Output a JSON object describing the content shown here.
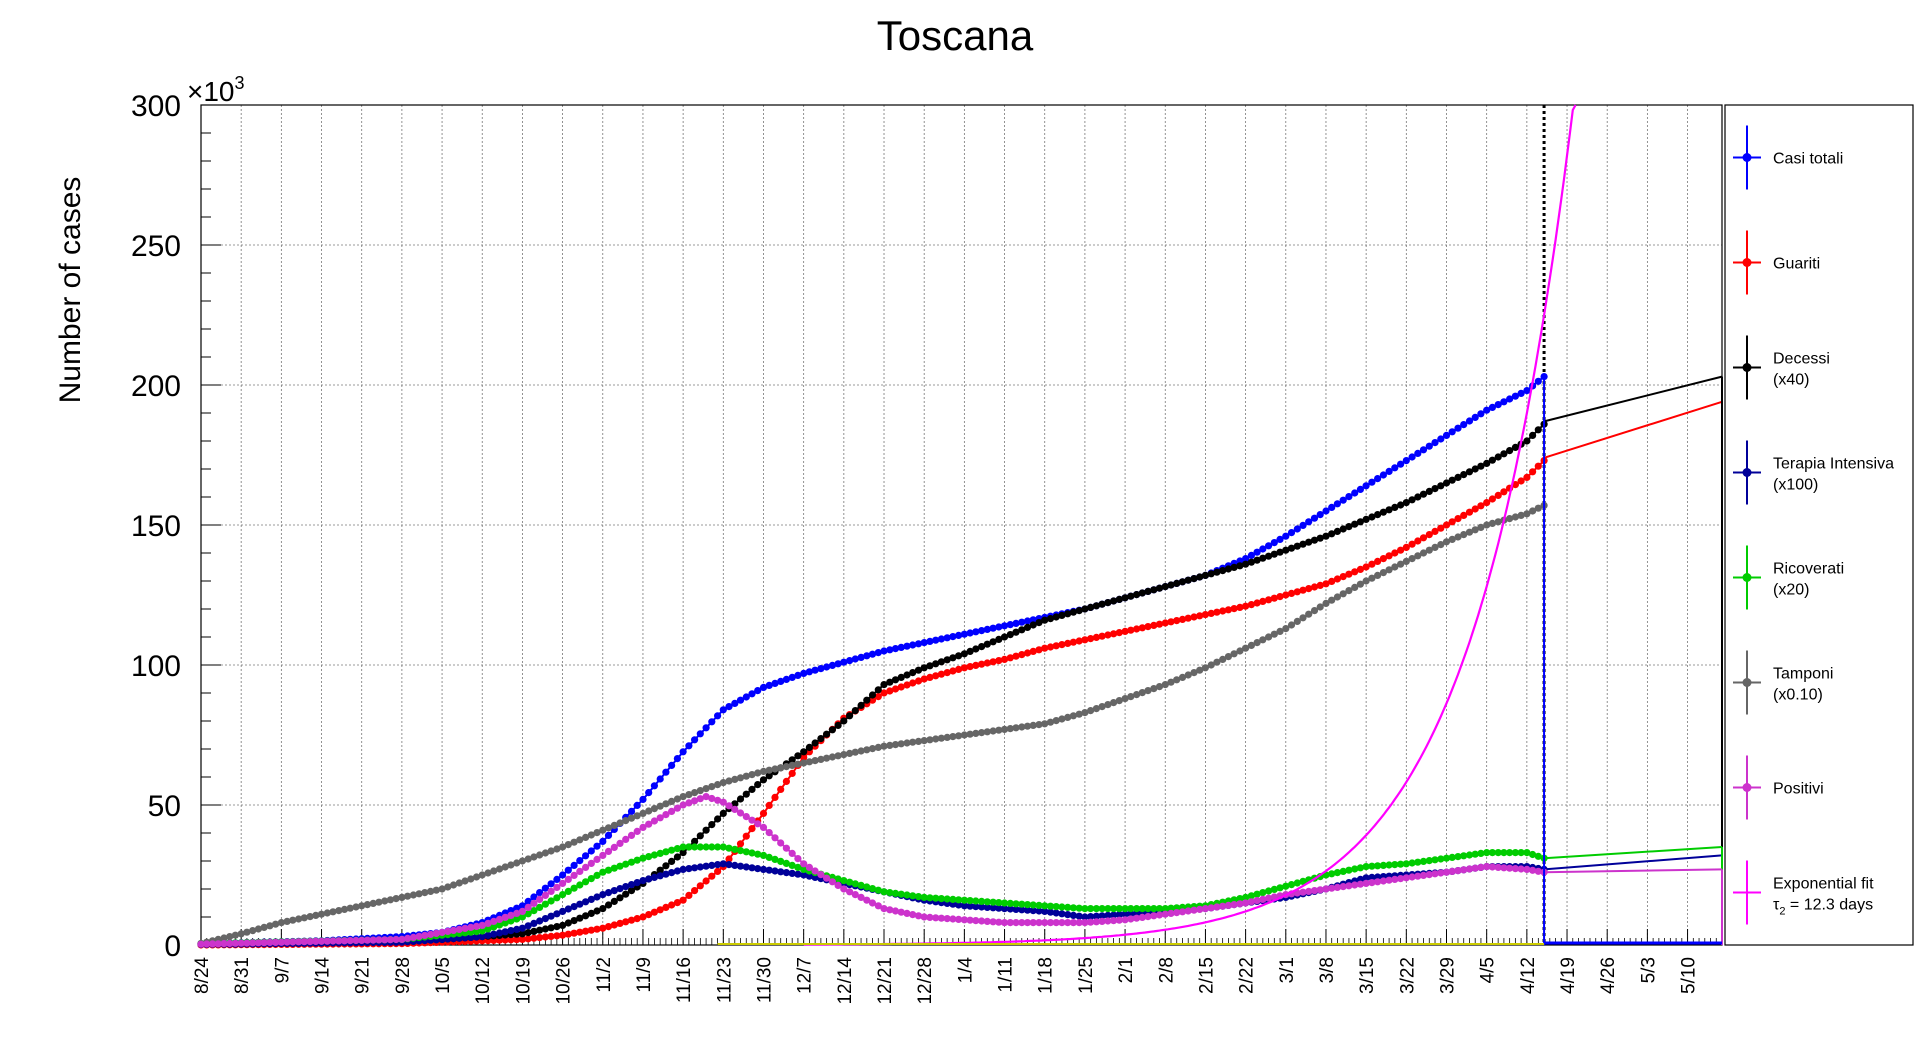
{
  "chart_data": {
    "type": "line",
    "title": "Toscana",
    "ylabel": "Number of cases",
    "xlabel": "",
    "y_multiplier": "×10",
    "y_multiplier_exp": "3",
    "ylim": [
      0,
      300
    ],
    "y_ticks": [
      0,
      50,
      100,
      150,
      200,
      250,
      300
    ],
    "x_range": [
      "2020-08-24",
      "2021-05-16"
    ],
    "x_ticks": [
      "8/24",
      "8/31",
      "9/7",
      "9/14",
      "9/21",
      "9/28",
      "10/5",
      "10/12",
      "10/19",
      "10/26",
      "11/2",
      "11/9",
      "11/16",
      "11/23",
      "11/30",
      "12/7",
      "12/14",
      "12/21",
      "12/28",
      "1/4",
      "1/11",
      "1/18",
      "1/25",
      "2/1",
      "2/8",
      "2/15",
      "2/22",
      "3/1",
      "3/8",
      "3/15",
      "3/22",
      "3/29",
      "4/5",
      "4/12",
      "4/19",
      "4/26",
      "5/3",
      "5/10"
    ],
    "grid": true,
    "legend_position": "right",
    "vertical_marker_date": "2021-04-15",
    "series": [
      {
        "name": "Casi totali",
        "color": "#0000ff",
        "marker": "circle",
        "points": [
          [
            "2020-08-24",
            0.5
          ],
          [
            "2020-09-14",
            1.5
          ],
          [
            "2020-09-28",
            3
          ],
          [
            "2020-10-05",
            4.5
          ],
          [
            "2020-10-12",
            8
          ],
          [
            "2020-10-19",
            14
          ],
          [
            "2020-10-26",
            25
          ],
          [
            "2020-11-02",
            37
          ],
          [
            "2020-11-09",
            52
          ],
          [
            "2020-11-16",
            69
          ],
          [
            "2020-11-23",
            84
          ],
          [
            "2020-11-30",
            92
          ],
          [
            "2020-12-07",
            97
          ],
          [
            "2020-12-14",
            101
          ],
          [
            "2020-12-21",
            105
          ],
          [
            "2020-12-28",
            108
          ],
          [
            "2021-01-04",
            111
          ],
          [
            "2021-01-11",
            114
          ],
          [
            "2021-01-18",
            117
          ],
          [
            "2021-01-25",
            120
          ],
          [
            "2021-02-01",
            124
          ],
          [
            "2021-02-08",
            128
          ],
          [
            "2021-02-15",
            132
          ],
          [
            "2021-02-22",
            138
          ],
          [
            "2021-03-01",
            146
          ],
          [
            "2021-03-08",
            155
          ],
          [
            "2021-03-15",
            164
          ],
          [
            "2021-03-22",
            173
          ],
          [
            "2021-03-29",
            182
          ],
          [
            "2021-04-05",
            191
          ],
          [
            "2021-04-12",
            198
          ],
          [
            "2021-04-15",
            203
          ]
        ]
      },
      {
        "name": "Guariti",
        "color": "#ff0000",
        "marker": "circle",
        "points": [
          [
            "2020-08-24",
            0
          ],
          [
            "2020-09-28",
            0.5
          ],
          [
            "2020-10-19",
            2
          ],
          [
            "2020-10-26",
            3.5
          ],
          [
            "2020-11-02",
            6
          ],
          [
            "2020-11-09",
            10
          ],
          [
            "2020-11-16",
            16
          ],
          [
            "2020-11-23",
            28
          ],
          [
            "2020-11-30",
            47
          ],
          [
            "2020-12-07",
            67
          ],
          [
            "2020-12-14",
            81
          ],
          [
            "2020-12-21",
            90
          ],
          [
            "2020-12-28",
            95
          ],
          [
            "2021-01-04",
            99
          ],
          [
            "2021-01-11",
            102
          ],
          [
            "2021-01-18",
            106
          ],
          [
            "2021-01-25",
            109
          ],
          [
            "2021-02-01",
            112
          ],
          [
            "2021-02-08",
            115
          ],
          [
            "2021-02-15",
            118
          ],
          [
            "2021-02-22",
            121
          ],
          [
            "2021-03-01",
            125
          ],
          [
            "2021-03-08",
            129
          ],
          [
            "2021-03-15",
            135
          ],
          [
            "2021-03-22",
            142
          ],
          [
            "2021-03-29",
            150
          ],
          [
            "2021-04-05",
            158
          ],
          [
            "2021-04-12",
            167
          ],
          [
            "2021-04-15",
            173
          ]
        ],
        "tail": [
          [
            "2021-04-15",
            174
          ],
          [
            "2021-05-16",
            194
          ]
        ]
      },
      {
        "name": "Decessi",
        "name_line2": "(x40)",
        "color": "#000000",
        "marker": "circle",
        "points": [
          [
            "2020-08-24",
            0.3
          ],
          [
            "2020-10-05",
            2
          ],
          [
            "2020-10-19",
            4
          ],
          [
            "2020-10-26",
            7
          ],
          [
            "2020-11-02",
            13
          ],
          [
            "2020-11-09",
            22
          ],
          [
            "2020-11-16",
            33
          ],
          [
            "2020-11-23",
            47
          ],
          [
            "2020-11-30",
            59
          ],
          [
            "2020-12-07",
            69
          ],
          [
            "2020-12-14",
            80
          ],
          [
            "2020-12-21",
            93
          ],
          [
            "2020-12-28",
            99
          ],
          [
            "2021-01-04",
            104
          ],
          [
            "2021-01-11",
            110
          ],
          [
            "2021-01-18",
            116
          ],
          [
            "2021-01-25",
            120
          ],
          [
            "2021-02-01",
            124
          ],
          [
            "2021-02-08",
            128
          ],
          [
            "2021-02-15",
            132
          ],
          [
            "2021-02-22",
            136
          ],
          [
            "2021-03-01",
            141
          ],
          [
            "2021-03-08",
            146
          ],
          [
            "2021-03-15",
            152
          ],
          [
            "2021-03-22",
            158
          ],
          [
            "2021-03-29",
            165
          ],
          [
            "2021-04-05",
            172
          ],
          [
            "2021-04-12",
            180
          ],
          [
            "2021-04-15",
            186
          ]
        ],
        "tail": [
          [
            "2021-04-15",
            187
          ],
          [
            "2021-05-16",
            203
          ]
        ]
      },
      {
        "name": "Terapia Intensiva",
        "name_line2": "(x100)",
        "color": "#000099",
        "marker": "circle",
        "points": [
          [
            "2020-08-24",
            0.2
          ],
          [
            "2020-09-28",
            1
          ],
          [
            "2020-10-12",
            3
          ],
          [
            "2020-10-19",
            6
          ],
          [
            "2020-10-26",
            12
          ],
          [
            "2020-11-02",
            18
          ],
          [
            "2020-11-09",
            23
          ],
          [
            "2020-11-16",
            27
          ],
          [
            "2020-11-23",
            29
          ],
          [
            "2020-11-30",
            27
          ],
          [
            "2020-12-07",
            25
          ],
          [
            "2020-12-14",
            22
          ],
          [
            "2020-12-21",
            19
          ],
          [
            "2020-12-28",
            16
          ],
          [
            "2021-01-04",
            14
          ],
          [
            "2021-01-11",
            13
          ],
          [
            "2021-01-18",
            12
          ],
          [
            "2021-01-25",
            10
          ],
          [
            "2021-02-01",
            11
          ],
          [
            "2021-02-08",
            12
          ],
          [
            "2021-02-15",
            13
          ],
          [
            "2021-02-22",
            15
          ],
          [
            "2021-03-01",
            17
          ],
          [
            "2021-03-08",
            20
          ],
          [
            "2021-03-15",
            24
          ],
          [
            "2021-03-22",
            25
          ],
          [
            "2021-03-29",
            26
          ],
          [
            "2021-04-05",
            28
          ],
          [
            "2021-04-12",
            28
          ],
          [
            "2021-04-15",
            27
          ]
        ],
        "tail": [
          [
            "2021-04-15",
            27
          ],
          [
            "2021-05-16",
            32
          ]
        ]
      },
      {
        "name": "Ricoverati",
        "name_line2": "(x20)",
        "color": "#00cc00",
        "marker": "circle",
        "points": [
          [
            "2020-08-24",
            0.5
          ],
          [
            "2020-09-28",
            2
          ],
          [
            "2020-10-12",
            5
          ],
          [
            "2020-10-19",
            10
          ],
          [
            "2020-10-26",
            18
          ],
          [
            "2020-11-02",
            26
          ],
          [
            "2020-11-09",
            31
          ],
          [
            "2020-11-16",
            35
          ],
          [
            "2020-11-23",
            35
          ],
          [
            "2020-11-30",
            32
          ],
          [
            "2020-12-07",
            27
          ],
          [
            "2020-12-14",
            23
          ],
          [
            "2020-12-21",
            19
          ],
          [
            "2020-12-28",
            17
          ],
          [
            "2021-01-04",
            16
          ],
          [
            "2021-01-11",
            15
          ],
          [
            "2021-01-18",
            14
          ],
          [
            "2021-01-25",
            13
          ],
          [
            "2021-02-01",
            13
          ],
          [
            "2021-02-08",
            13
          ],
          [
            "2021-02-15",
            14
          ],
          [
            "2021-02-22",
            17
          ],
          [
            "2021-03-01",
            21
          ],
          [
            "2021-03-08",
            25
          ],
          [
            "2021-03-15",
            28
          ],
          [
            "2021-03-22",
            29
          ],
          [
            "2021-03-29",
            31
          ],
          [
            "2021-04-05",
            33
          ],
          [
            "2021-04-12",
            33
          ],
          [
            "2021-04-15",
            31
          ]
        ],
        "tail": [
          [
            "2021-04-15",
            31
          ],
          [
            "2021-05-16",
            35
          ]
        ]
      },
      {
        "name": "Tamponi",
        "name_line2": "(x0.10)",
        "color": "#666666",
        "marker": "circle",
        "points": [
          [
            "2020-08-24",
            0.5
          ],
          [
            "2020-08-31",
            4
          ],
          [
            "2020-09-07",
            8
          ],
          [
            "2020-09-14",
            11
          ],
          [
            "2020-09-21",
            14
          ],
          [
            "2020-09-28",
            17
          ],
          [
            "2020-10-05",
            20
          ],
          [
            "2020-10-12",
            25
          ],
          [
            "2020-10-19",
            30
          ],
          [
            "2020-10-26",
            35
          ],
          [
            "2020-11-02",
            41
          ],
          [
            "2020-11-09",
            47
          ],
          [
            "2020-11-16",
            53
          ],
          [
            "2020-11-23",
            58
          ],
          [
            "2020-11-30",
            62
          ],
          [
            "2020-12-07",
            65
          ],
          [
            "2020-12-14",
            68
          ],
          [
            "2020-12-21",
            71
          ],
          [
            "2020-12-28",
            73
          ],
          [
            "2021-01-04",
            75
          ],
          [
            "2021-01-11",
            77
          ],
          [
            "2021-01-18",
            79
          ],
          [
            "2021-01-25",
            83
          ],
          [
            "2021-02-01",
            88
          ],
          [
            "2021-02-08",
            93
          ],
          [
            "2021-02-15",
            99
          ],
          [
            "2021-02-22",
            106
          ],
          [
            "2021-03-01",
            113
          ],
          [
            "2021-03-08",
            122
          ],
          [
            "2021-03-15",
            130
          ],
          [
            "2021-03-22",
            137
          ],
          [
            "2021-03-29",
            144
          ],
          [
            "2021-04-05",
            150
          ],
          [
            "2021-04-12",
            154
          ],
          [
            "2021-04-15",
            157
          ]
        ]
      },
      {
        "name": "Positivi",
        "color": "#cc33cc",
        "marker": "circle",
        "points": [
          [
            "2020-08-24",
            0.3
          ],
          [
            "2020-09-28",
            2
          ],
          [
            "2020-10-12",
            7
          ],
          [
            "2020-10-19",
            12
          ],
          [
            "2020-10-26",
            22
          ],
          [
            "2020-11-02",
            32
          ],
          [
            "2020-11-09",
            42
          ],
          [
            "2020-11-16",
            50
          ],
          [
            "2020-11-20",
            53
          ],
          [
            "2020-11-23",
            51
          ],
          [
            "2020-11-30",
            42
          ],
          [
            "2020-12-07",
            29
          ],
          [
            "2020-12-14",
            20
          ],
          [
            "2020-12-21",
            13
          ],
          [
            "2020-12-28",
            10
          ],
          [
            "2021-01-04",
            9
          ],
          [
            "2021-01-11",
            8
          ],
          [
            "2021-01-18",
            8
          ],
          [
            "2021-01-25",
            8
          ],
          [
            "2021-02-01",
            9
          ],
          [
            "2021-02-08",
            11
          ],
          [
            "2021-02-15",
            13
          ],
          [
            "2021-02-22",
            15
          ],
          [
            "2021-03-01",
            18
          ],
          [
            "2021-03-08",
            20
          ],
          [
            "2021-03-15",
            22
          ],
          [
            "2021-03-22",
            24
          ],
          [
            "2021-03-29",
            26
          ],
          [
            "2021-04-05",
            28
          ],
          [
            "2021-04-12",
            27
          ],
          [
            "2021-04-15",
            26
          ]
        ],
        "tail": [
          [
            "2021-04-15",
            26
          ],
          [
            "2021-05-16",
            27
          ]
        ]
      },
      {
        "name": "Exponential fit",
        "name_line2": "τ",
        "name_line2_sub": "2",
        "name_line2_rest": " = 12.3 days",
        "color": "#ff00ff",
        "marker": "none",
        "fit_anchor": [
          "2021-04-15",
          225
        ],
        "doubling_days": 12.3,
        "fit_range": [
          "2020-12-07",
          "2021-04-24"
        ]
      }
    ]
  }
}
